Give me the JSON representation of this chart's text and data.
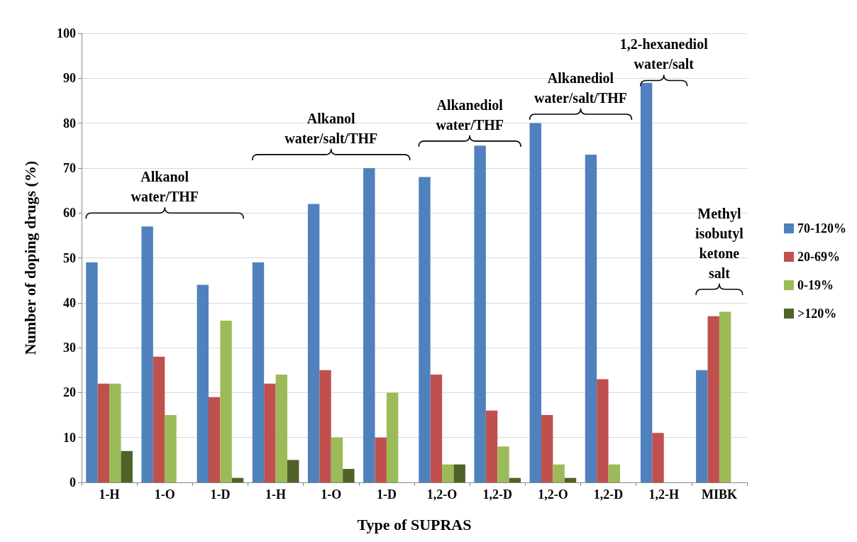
{
  "chart_data": {
    "type": "bar",
    "xlabel": "Type of SUPRAS",
    "ylabel": "Number of doping drugs (%)",
    "categories": [
      "1-H",
      "1-O",
      "1-D",
      "1-H",
      "1-O",
      "1-D",
      "1,2-O",
      "1,2-D",
      "1,2-O",
      "1,2-D",
      "1,2-H",
      "MIBK"
    ],
    "series": [
      {
        "name": "70-120%",
        "color": "#4f81bd",
        "values": [
          49,
          57,
          44,
          49,
          62,
          70,
          68,
          75,
          80,
          73,
          89,
          25
        ]
      },
      {
        "name": "20-69%",
        "color": "#c0504d",
        "values": [
          22,
          28,
          19,
          22,
          25,
          10,
          24,
          16,
          15,
          23,
          11,
          37
        ]
      },
      {
        "name": "0-19%",
        "color": "#9bbb59",
        "values": [
          22,
          15,
          36,
          24,
          10,
          20,
          4,
          8,
          4,
          4,
          0,
          38
        ]
      },
      {
        "name": ">120%",
        "color": "#4f6228",
        "values": [
          7,
          0,
          1,
          5,
          3,
          0,
          4,
          1,
          1,
          0,
          0,
          0
        ]
      }
    ],
    "ylim": [
      0,
      100
    ],
    "yticks": [
      0,
      10,
      20,
      30,
      40,
      50,
      60,
      70,
      80,
      90,
      100
    ],
    "grid": "y",
    "legend": "right",
    "annotations": [
      "Alkanol\nwater/THF",
      "Alkanol\nwater/salt/THF",
      "Alkanediol\nwater/THF",
      "Alkanediol\nwater/salt/THF",
      "1,2-hexanediol\nwater/salt",
      "Methyl\nisobutyl\nketone\nsalt"
    ]
  }
}
